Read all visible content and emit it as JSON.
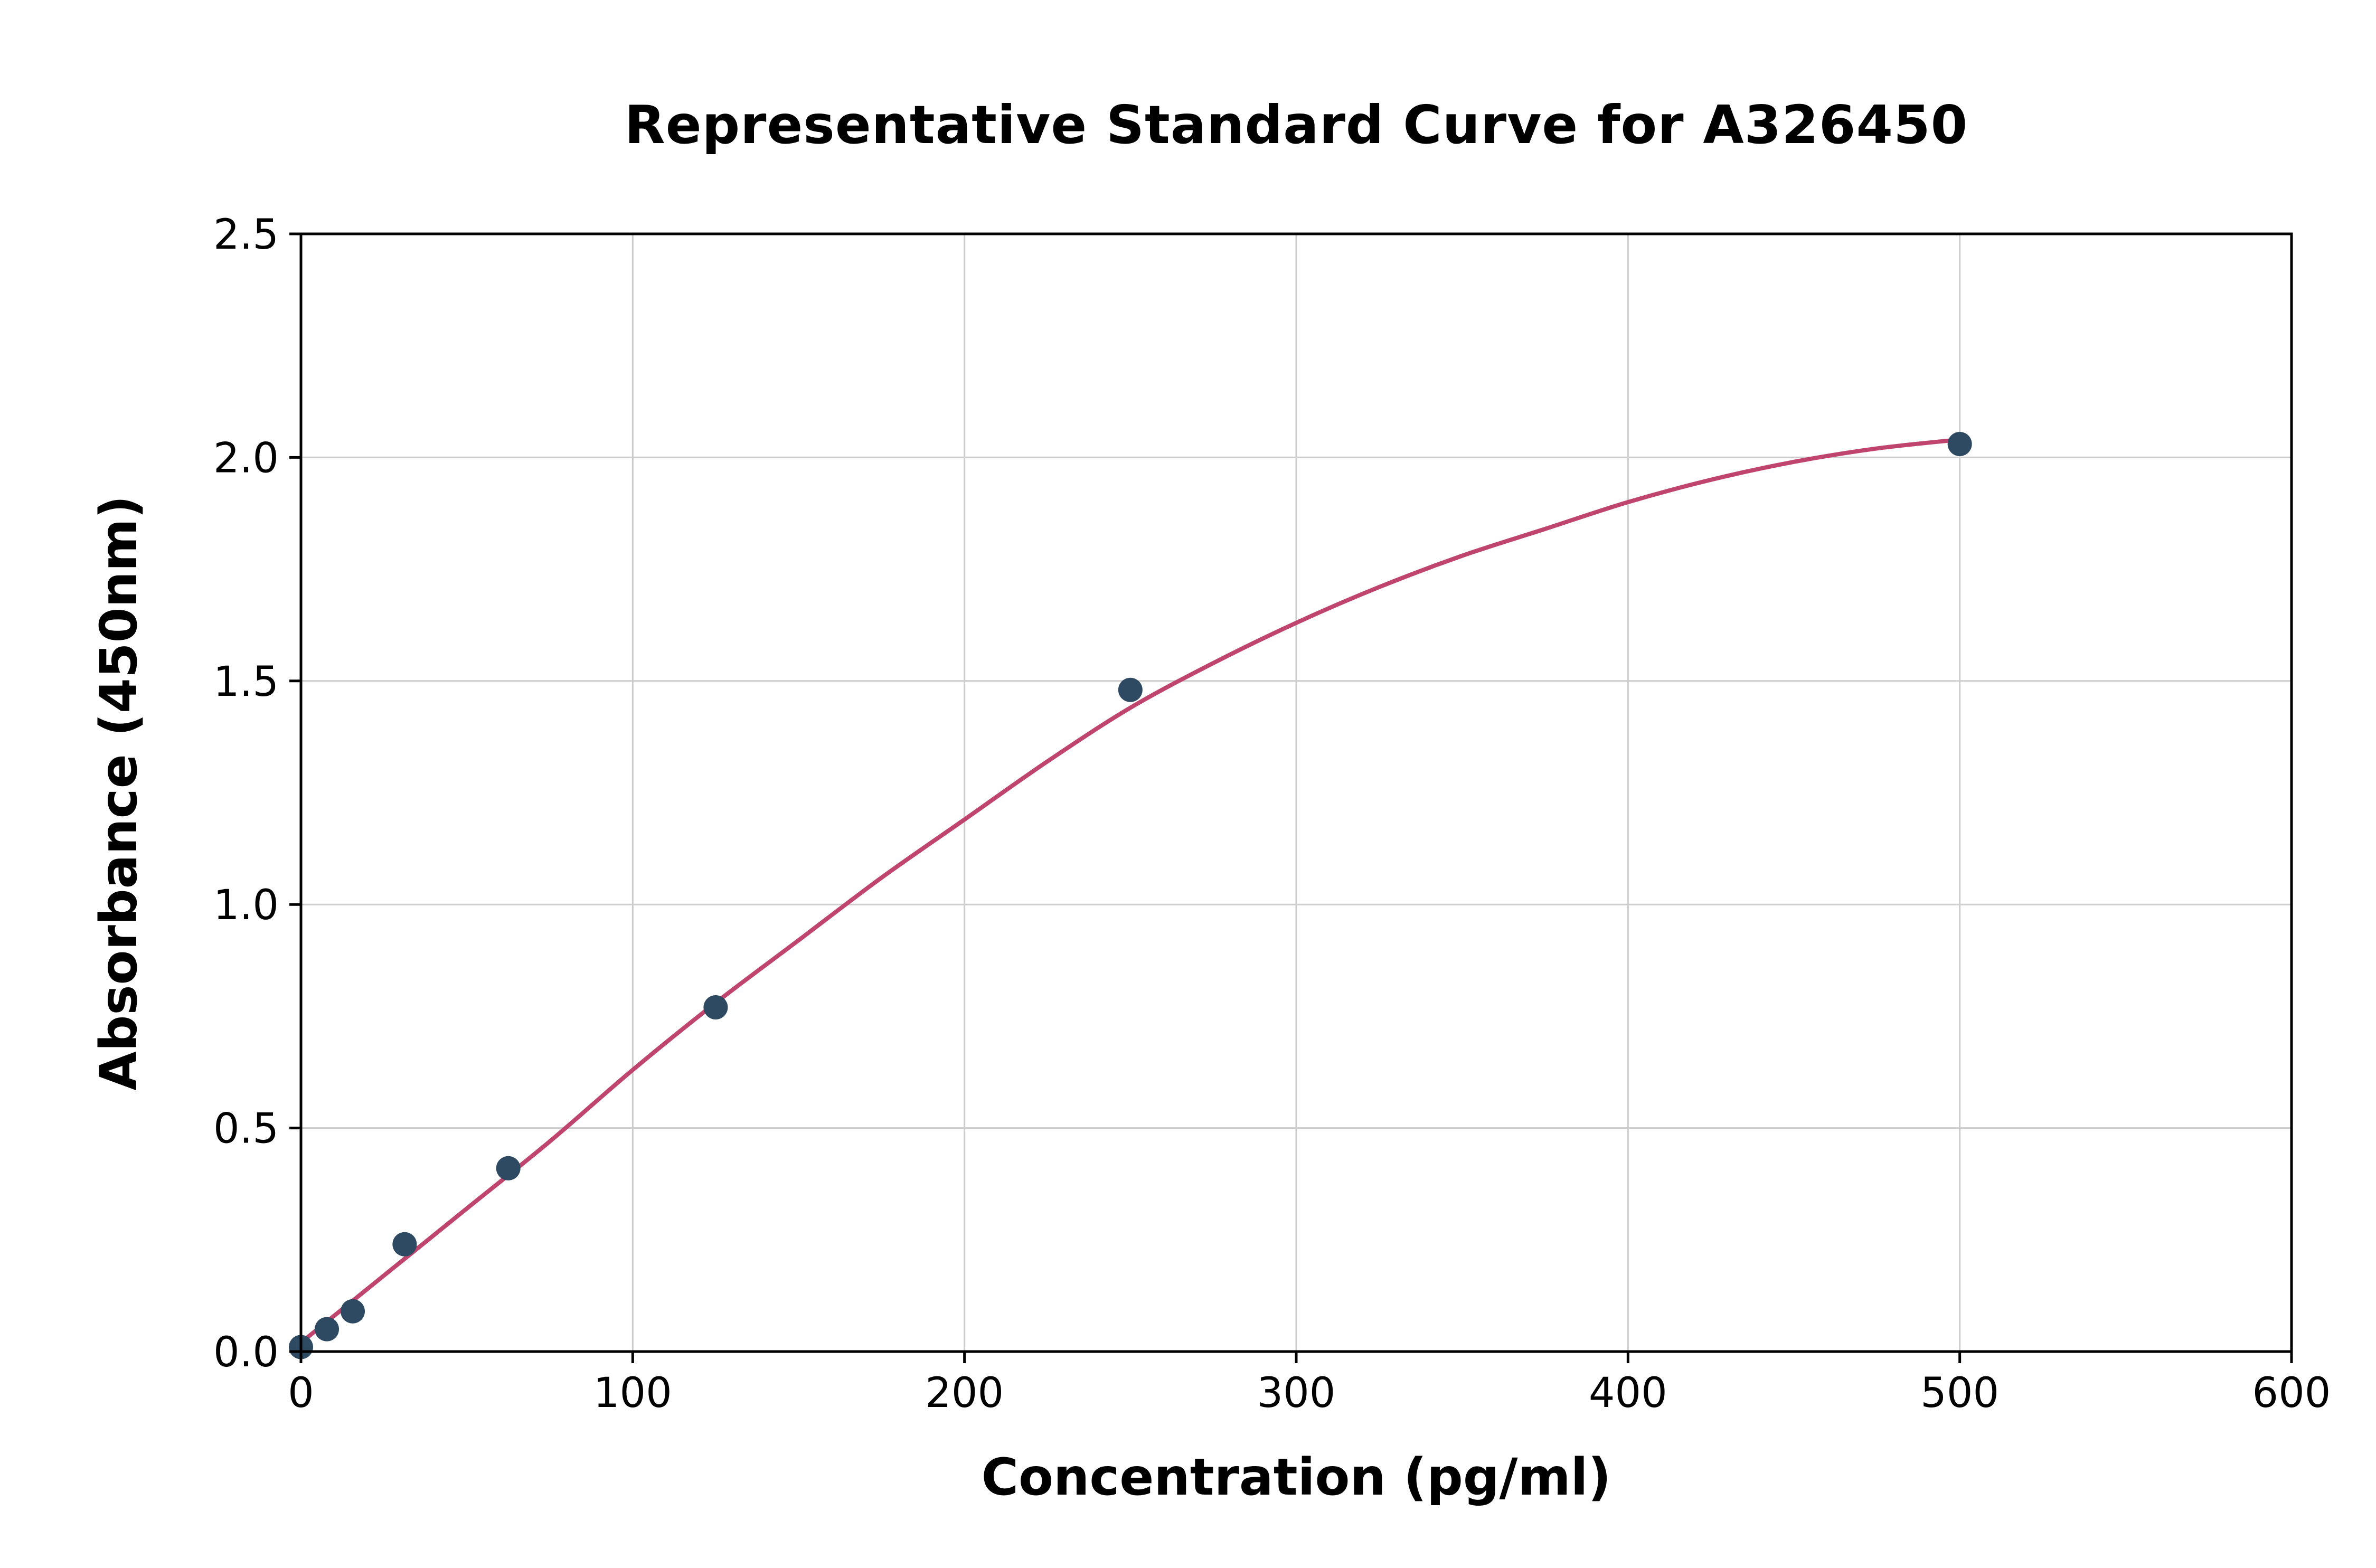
{
  "chart_data": {
    "type": "scatter",
    "title": "Representative Standard Curve for A326450",
    "xlabel": "Concentration (pg/ml)",
    "ylabel": "Absorbance (450nm)",
    "xlim": [
      0,
      600
    ],
    "ylim": [
      0,
      2.5
    ],
    "grid": true,
    "legend_position": "none",
    "background_color": "#ffffff",
    "grid_color": "#cccccc",
    "axis_color": "#000000",
    "x_ticks": {
      "values": [
        0,
        100,
        200,
        300,
        400,
        500,
        600
      ],
      "labels": [
        "0",
        "100",
        "200",
        "300",
        "400",
        "500",
        "600"
      ]
    },
    "y_ticks": {
      "values": [
        0,
        0.5,
        1.0,
        1.5,
        2.0,
        2.5
      ],
      "labels": [
        "0.0",
        "0.5",
        "1.0",
        "1.5",
        "2.0",
        "2.5"
      ]
    },
    "series": [
      {
        "name": "standard-points",
        "type": "scatter",
        "color": "#2e4a62",
        "marker_radius": 23,
        "points": [
          [
            0,
            0.01
          ],
          [
            7.8,
            0.05
          ],
          [
            15.6,
            0.09
          ],
          [
            31.25,
            0.24
          ],
          [
            62.5,
            0.41
          ],
          [
            125,
            0.77
          ],
          [
            250,
            1.48
          ],
          [
            500,
            2.03
          ]
        ]
      },
      {
        "name": "fitted-curve",
        "type": "line",
        "color": "#c0456e",
        "stroke_width": 8,
        "points": [
          [
            0,
            0.02
          ],
          [
            25,
            0.17
          ],
          [
            50,
            0.32
          ],
          [
            75,
            0.47
          ],
          [
            100,
            0.63
          ],
          [
            125,
            0.78
          ],
          [
            150,
            0.92
          ],
          [
            175,
            1.06
          ],
          [
            200,
            1.19
          ],
          [
            225,
            1.32
          ],
          [
            250,
            1.44
          ],
          [
            275,
            1.54
          ],
          [
            300,
            1.63
          ],
          [
            325,
            1.71
          ],
          [
            350,
            1.78
          ],
          [
            375,
            1.84
          ],
          [
            400,
            1.9
          ],
          [
            425,
            1.95
          ],
          [
            450,
            1.99
          ],
          [
            475,
            2.02
          ],
          [
            500,
            2.04
          ]
        ]
      }
    ]
  }
}
